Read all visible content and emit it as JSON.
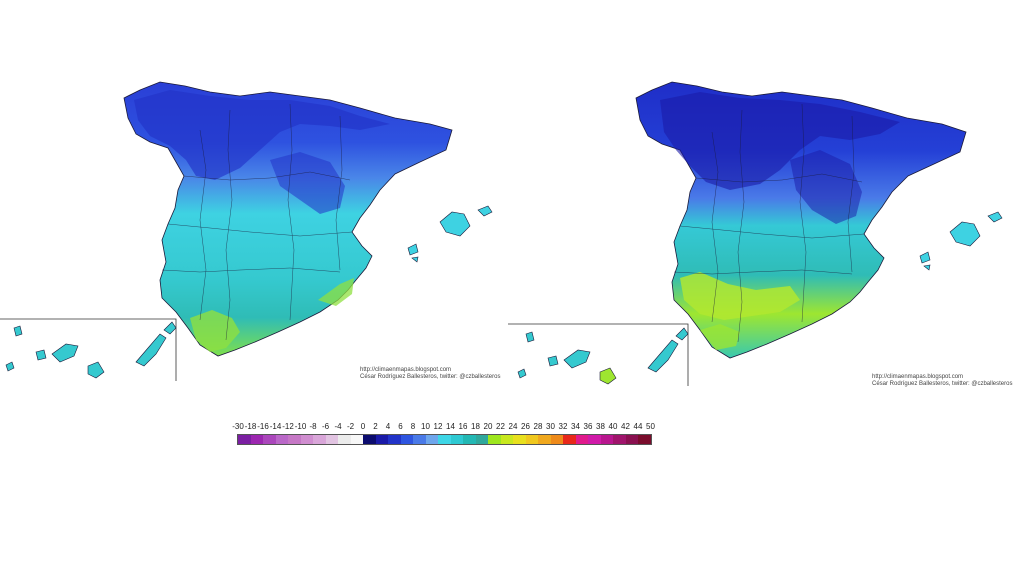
{
  "maps": [
    {
      "credit_line1": "http://climaenmapas.blogspot.com",
      "credit_line2": "César Rodríguez Ballesteros, twitter: @czballesteros"
    },
    {
      "credit_line1": "http://climaenmapas.blogspot.com",
      "credit_line2": "César Rodríguez Ballesteros, twitter: @czballesteros"
    }
  ],
  "legend": {
    "labels": [
      "-30",
      "-18",
      "-16",
      "-14",
      "-12",
      "-10",
      "-8",
      "-6",
      "-4",
      "-2",
      "0",
      "2",
      "4",
      "6",
      "8",
      "10",
      "12",
      "14",
      "16",
      "18",
      "20",
      "22",
      "24",
      "26",
      "28",
      "30",
      "32",
      "34",
      "36",
      "38",
      "40",
      "42",
      "44",
      "50"
    ],
    "colors": [
      "#7b1fa2",
      "#9c27b0",
      "#ab47bc",
      "#ba68c8",
      "#c678c6",
      "#d08ed0",
      "#d9a6d9",
      "#e2c4e2",
      "#ececec",
      "#f7f7f7",
      "#0b0b6e",
      "#1a1aa8",
      "#2233c8",
      "#2e55e0",
      "#4a7ae8",
      "#6ea6ec",
      "#3ed6e6",
      "#2ec9d2",
      "#23b8b4",
      "#2fa89c",
      "#9ee61e",
      "#c8e81e",
      "#e8e01e",
      "#f0c81e",
      "#f0a81e",
      "#ee8a1a",
      "#e8281a",
      "#e01a8c",
      "#d01aa8",
      "#b8168e",
      "#a0146c",
      "#8a1050",
      "#7a0c2c"
    ]
  }
}
